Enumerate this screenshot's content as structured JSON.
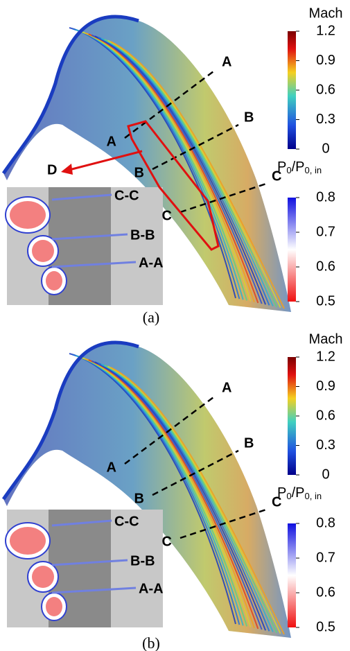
{
  "panels": [
    {
      "caption": "(a)",
      "mach": {
        "title": "Mach",
        "ticks": [
          1.2,
          0.9,
          0.6,
          0.3,
          0
        ]
      },
      "pressure": {
        "title_parts": [
          "P",
          "0",
          "/P",
          "0, in"
        ],
        "ticks": [
          0.8,
          0.7,
          0.6,
          0.5
        ]
      },
      "cuts": [
        "A",
        "B",
        "C"
      ],
      "arrow_label": "D",
      "inset_labels": [
        "C-C",
        "B-B",
        "A-A"
      ]
    },
    {
      "caption": "(b)",
      "mach": {
        "title": "Mach",
        "ticks": [
          1.2,
          0.9,
          0.6,
          0.3,
          0
        ]
      },
      "pressure": {
        "title_parts": [
          "P",
          "0",
          "/P",
          "0, in"
        ],
        "ticks": [
          0.8,
          0.7,
          0.6,
          0.5
        ]
      },
      "cuts": [
        "A",
        "B",
        "C"
      ],
      "inset_labels": [
        "C-C",
        "B-B",
        "A-A"
      ]
    }
  ]
}
